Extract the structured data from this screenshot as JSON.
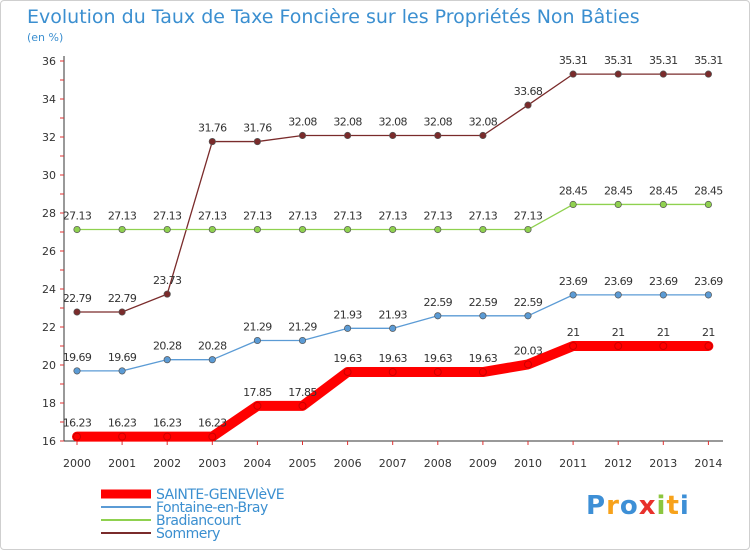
{
  "chart_data": {
    "type": "line",
    "title": "Evolution du Taux de Taxe Foncière sur les Propriétés Non Bâties",
    "subtitle": "(en %)",
    "xlabel": "",
    "ylabel": "",
    "ylim": [
      16,
      36
    ],
    "yticks": [
      "16",
      "18",
      "20",
      "22",
      "24",
      "26",
      "28",
      "30",
      "32",
      "34",
      "36"
    ],
    "categories": [
      "2000",
      "2001",
      "2002",
      "2003",
      "2004",
      "2005",
      "2006",
      "2007",
      "2008",
      "2009",
      "2010",
      "2011",
      "2012",
      "2013",
      "2014"
    ],
    "series": [
      {
        "name": "SAINTE-GENEVIèVE",
        "color": "#ff0000",
        "values": [
          16.23,
          16.23,
          16.23,
          16.23,
          17.85,
          17.85,
          19.63,
          19.63,
          19.63,
          19.63,
          20.03,
          21,
          21,
          21,
          21
        ],
        "labels": [
          "16.23",
          "16.23",
          "16.23",
          "16.23",
          "17.85",
          "17.85",
          "19.63",
          "19.63",
          "19.63",
          "19.63",
          "20.03",
          "21",
          "21",
          "21",
          "21"
        ]
      },
      {
        "name": "Fontaine-en-Bray",
        "color": "#5b9bd5",
        "values": [
          19.69,
          19.69,
          20.28,
          20.28,
          21.29,
          21.29,
          21.93,
          21.93,
          22.59,
          22.59,
          22.59,
          23.69,
          23.69,
          23.69,
          23.69
        ],
        "labels": [
          "19.69",
          "19.69",
          "20.28",
          "20.28",
          "21.29",
          "21.29",
          "21.93",
          "21.93",
          "22.59",
          "22.59",
          "22.59",
          "23.69",
          "23.69",
          "23.69",
          "23.69"
        ]
      },
      {
        "name": "Bradiancourt",
        "color": "#8fd14f",
        "values": [
          27.13,
          27.13,
          27.13,
          27.13,
          27.13,
          27.13,
          27.13,
          27.13,
          27.13,
          27.13,
          27.13,
          28.45,
          28.45,
          28.45,
          28.45
        ],
        "labels": [
          "27.13",
          "27.13",
          "27.13",
          "27.13",
          "27.13",
          "27.13",
          "27.13",
          "27.13",
          "27.13",
          "27.13",
          "27.13",
          "28.45",
          "28.45",
          "28.45",
          "28.45"
        ]
      },
      {
        "name": "Sommery",
        "color": "#7a2b2b",
        "values": [
          22.79,
          22.79,
          23.73,
          31.76,
          31.76,
          32.08,
          32.08,
          32.08,
          32.08,
          32.08,
          33.68,
          35.31,
          35.31,
          35.31,
          35.31
        ],
        "labels": [
          "22.79",
          "22.79",
          "23.73",
          "31.76",
          "31.76",
          "32.08",
          "32.08",
          "32.08",
          "32.08",
          "32.08",
          "33.68",
          "35.31",
          "35.31",
          "35.31",
          "35.31"
        ]
      }
    ],
    "legend_position": "bottom-left",
    "grid": false
  },
  "logo": {
    "letters": [
      "P",
      "r",
      "o",
      "x",
      "i",
      "t",
      "i"
    ],
    "colors": [
      "#3d8fd6",
      "#f7a21b",
      "#3d8fd6",
      "#e8312c",
      "#8cc63f",
      "#f7a21b",
      "#3d8fd6"
    ]
  }
}
